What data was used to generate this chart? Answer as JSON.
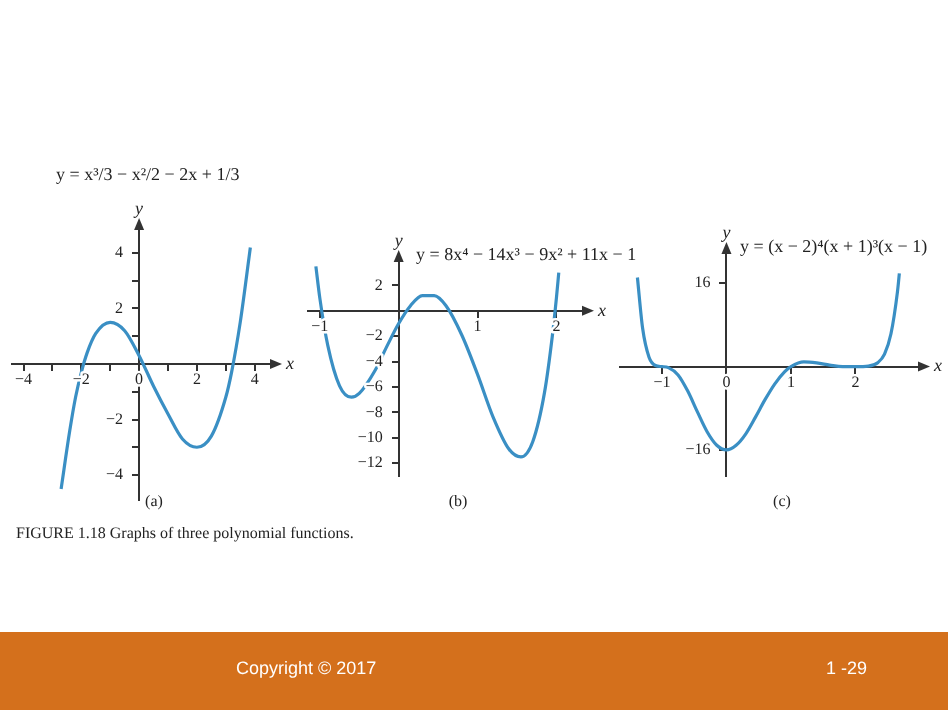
{
  "chart_data": [
    {
      "type": "line",
      "title": "y = x³/3 − x²/2 − 2x + 1/3",
      "xlabel": "x",
      "ylabel": "y",
      "annotations": [
        "(a)",
        "FIGURE 1.18  Graphs of three polynomial functions.",
        "Copyright © 2017",
        "1 -29"
      ],
      "x": [
        -2.7,
        -2.4,
        -2.2,
        -2,
        -1.8,
        -1.5,
        -1,
        -0.5,
        0,
        0.5,
        1,
        1.5,
        2,
        2.5,
        3,
        3.2,
        3.5,
        3.8,
        3.85
      ],
      "series": [
        {
          "color": "#3a8fc4",
          "values": [
            -4.5,
            -2.4,
            -1.2,
            -0.3,
            0.4,
            1.1,
            1.5,
            1.2,
            0.3,
            -0.8,
            -1.8,
            -2.7,
            -3,
            -2.6,
            -1.2,
            -0.3,
            1.5,
            3.8,
            4.2
          ]
        }
      ],
      "xlim": [
        -4.4,
        4.6
      ],
      "ylim": [
        -4.9,
        4.9
      ],
      "xticks": [
        -4,
        {
          "value": -3,
          "label": null
        },
        -2,
        {
          "value": -1,
          "label": null
        },
        0,
        {
          "value": 1,
          "label": null
        },
        2,
        {
          "value": 3,
          "label": null
        },
        4
      ],
      "yticks": [
        -4,
        {
          "value": -3,
          "label": null
        },
        -2,
        {
          "value": -1,
          "label": null
        },
        {
          "value": 1,
          "label": null
        },
        2,
        {
          "value": 3,
          "label": null
        },
        4
      ],
      "grid": false
    },
    {
      "type": "line",
      "title": "y = 8x⁴ − 14x³ − 9x² + 11x − 1",
      "xlabel": "x",
      "ylabel": "y",
      "annotations": [
        "(b)"
      ],
      "x": [
        -1.05,
        -1,
        -0.9,
        -0.75,
        -0.6,
        -0.5,
        -0.3,
        -0.15,
        0,
        0.15,
        0.3,
        0.45,
        0.6,
        0.8,
        1,
        1.2,
        1.4,
        1.55,
        1.7,
        1.85,
        1.95,
        2,
        2.03
      ],
      "series": [
        {
          "color": "#3a8fc4",
          "values": [
            3.5,
            1,
            -2.7,
            -5.9,
            -6.8,
            -6.5,
            -4.7,
            -2.8,
            -1,
            0.4,
            1.2,
            1.2,
            0.4,
            -1.9,
            -5,
            -8.4,
            -10.9,
            -11.5,
            -10.3,
            -6.4,
            -1.9,
            1,
            3
          ]
        }
      ],
      "xlim": [
        -1.15,
        2.35
      ],
      "ylim": [
        -13,
        4
      ],
      "xticks": [
        -1,
        1,
        2
      ],
      "yticks": [
        -12,
        -10,
        -8,
        -6,
        -4,
        -2,
        2
      ],
      "grid": false
    },
    {
      "type": "line",
      "title": "y = (x − 2)⁴(x + 1)³(x − 1)",
      "xlabel": "x",
      "ylabel": "y",
      "annotations": [
        "(c)"
      ],
      "x": [
        -1.38,
        -1.3,
        -1.2,
        -1.1,
        -1,
        -0.9,
        -0.75,
        -0.6,
        -0.45,
        -0.3,
        -0.15,
        0,
        0.15,
        0.3,
        0.45,
        0.6,
        0.75,
        0.9,
        1,
        1.2,
        1.4,
        1.6,
        1.8,
        2,
        2.2,
        2.35,
        2.45,
        2.55,
        2.65,
        2.68
      ],
      "series": [
        {
          "color": "#3a8fc4",
          "values": [
            17.1,
            7.4,
            1.8,
            0.2,
            0,
            -0.2,
            -1.6,
            -4.7,
            -8.7,
            -12.5,
            -15.1,
            -16,
            -15.1,
            -12.9,
            -9.7,
            -6.3,
            -3.3,
            -1,
            0,
            0.9,
            0.7,
            0.3,
            0,
            0,
            0.1,
            0.8,
            2.4,
            6.3,
            14.3,
            17.9
          ]
        }
      ],
      "xlim": [
        -1.65,
        3.0
      ],
      "ylim": [
        -21,
        22
      ],
      "xticks": [
        -1,
        0,
        1,
        2
      ],
      "yticks": [
        -16,
        16
      ],
      "grid": false
    }
  ]
}
